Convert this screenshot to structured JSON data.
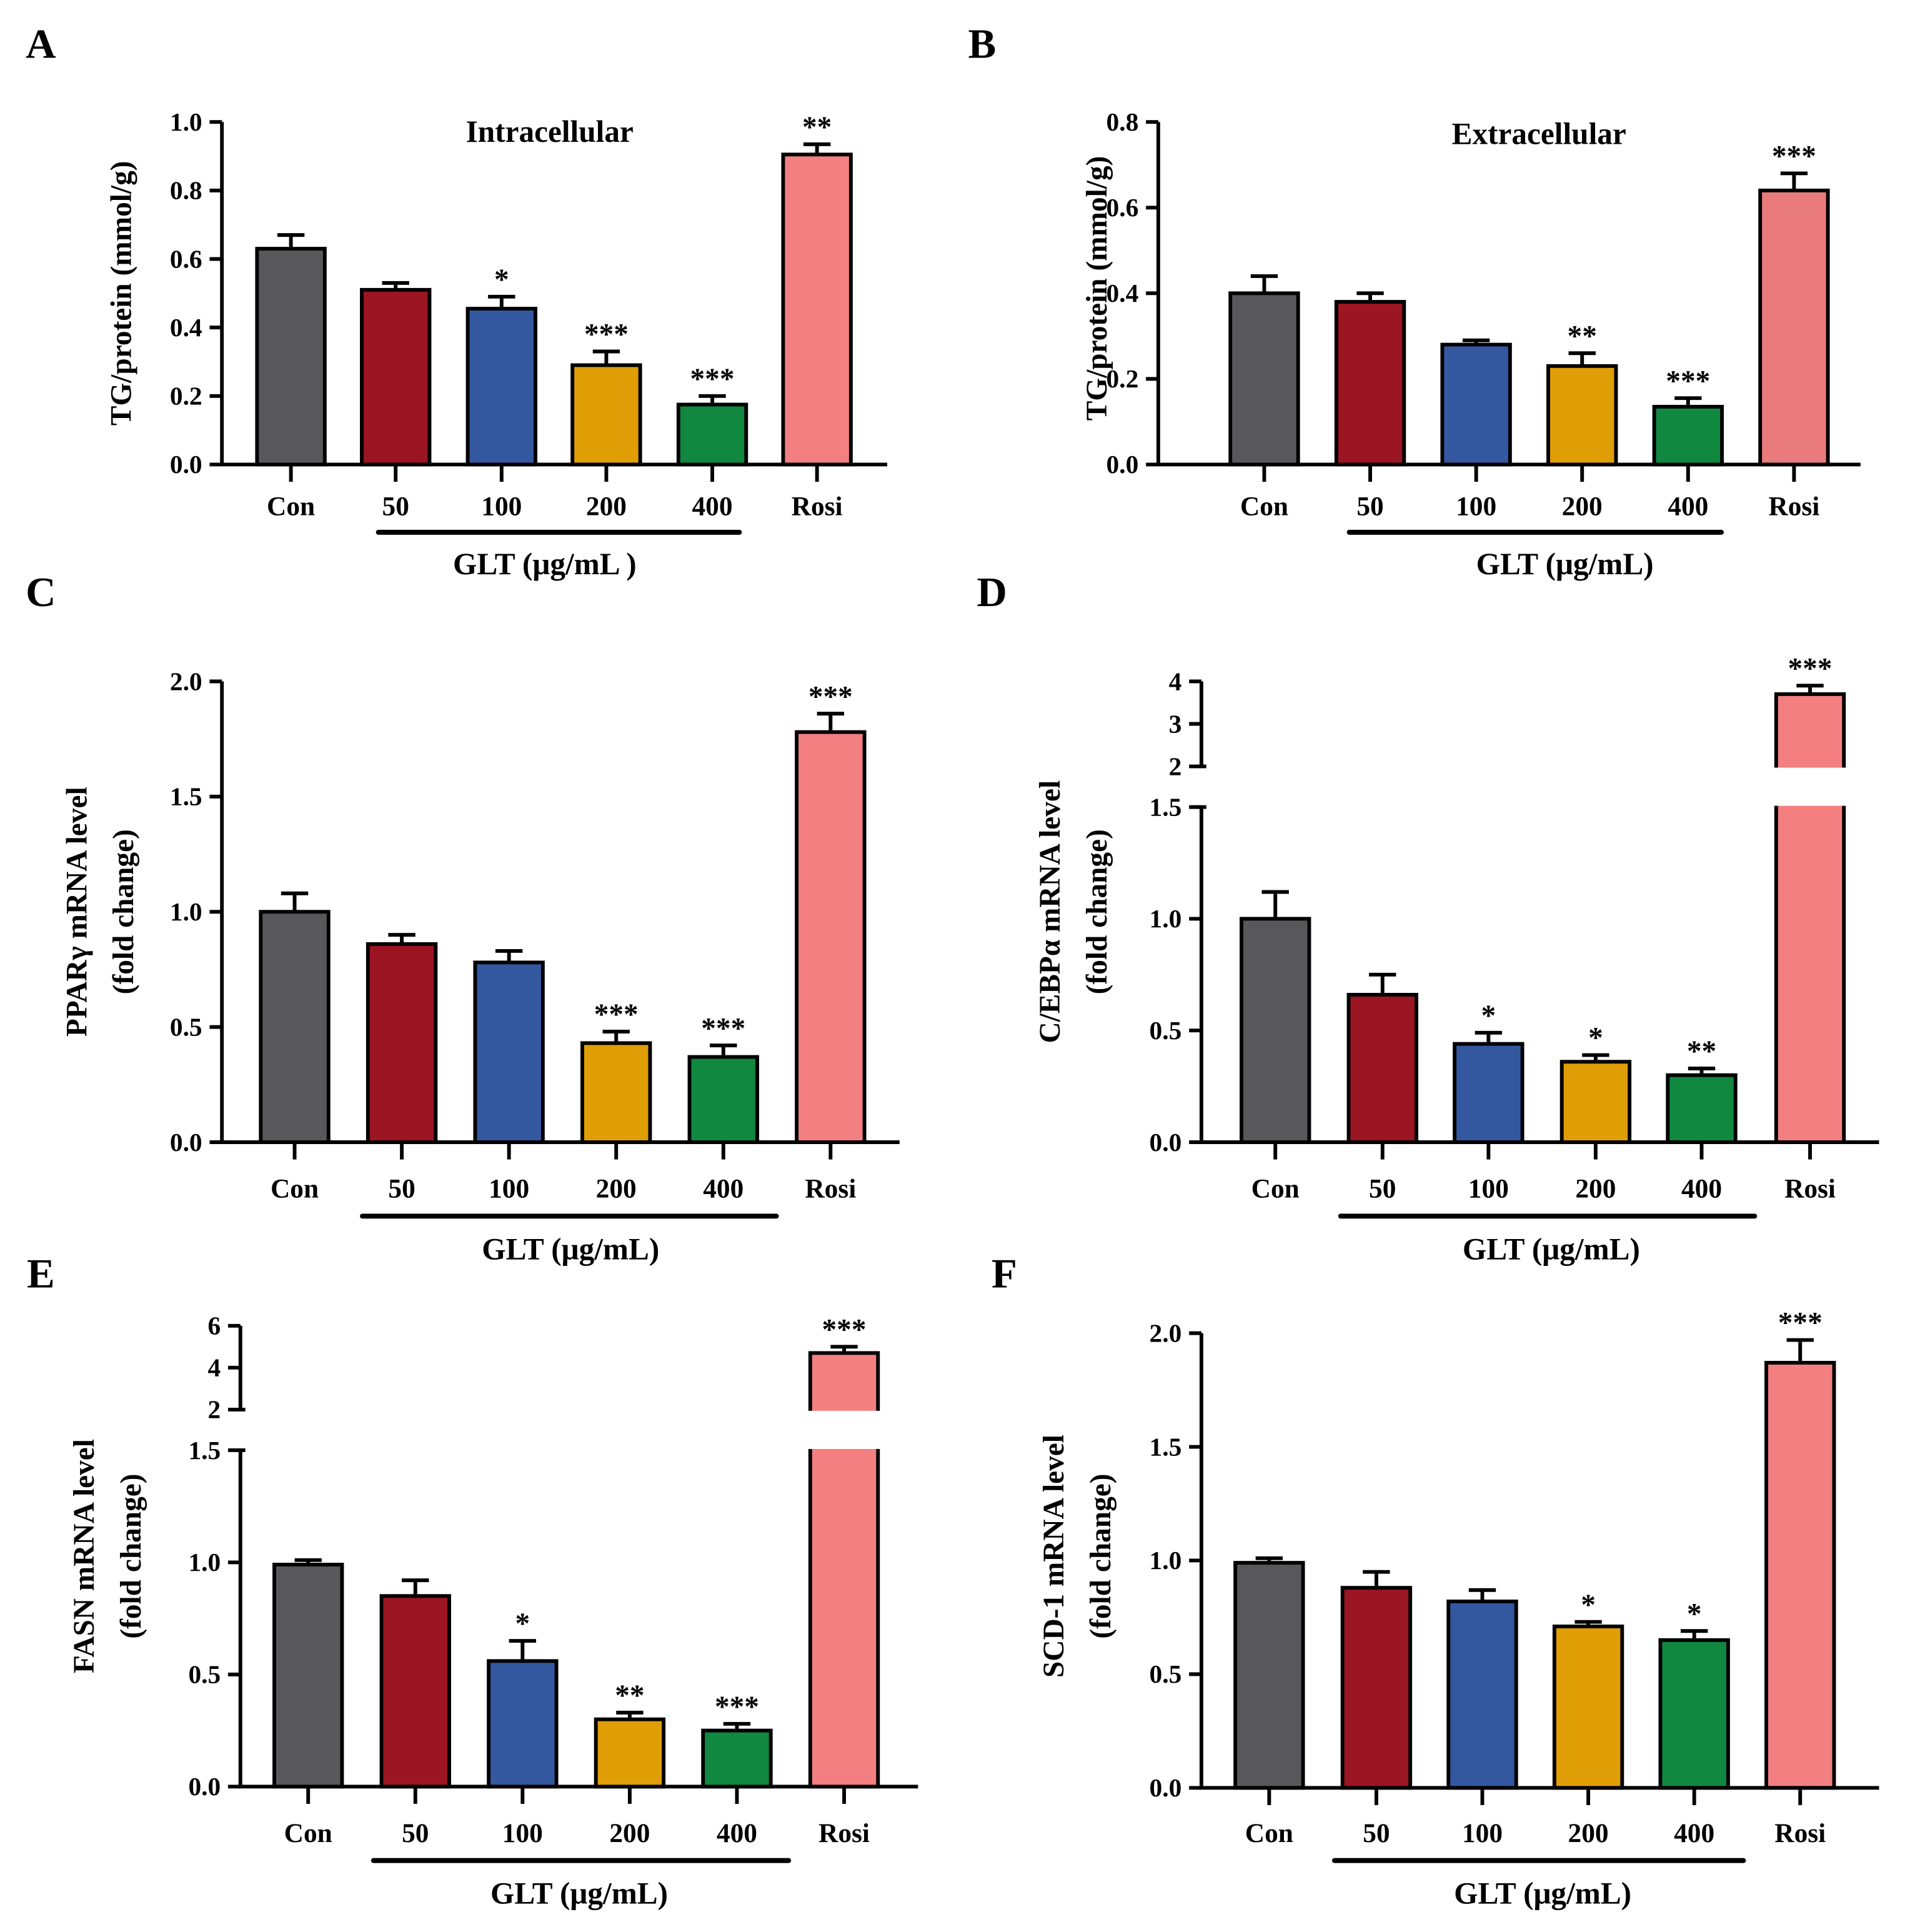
{
  "colors": {
    "Con": "#58585a",
    "50": "#9b1522",
    "100": "#3358a0",
    "200": "#e09e06",
    "400": "#108840",
    "Rosi": "#f37f80",
    "RosiB": "#e97b7d"
  },
  "chart_data": [
    {
      "panel": "A",
      "type": "bar",
      "title": "Intracellular",
      "ylabel": "TG/protein (mmol/g)",
      "xlabel": "GLT (μg/mL )",
      "categories": [
        "Con",
        "50",
        "100",
        "200",
        "400",
        "Rosi"
      ],
      "values": [
        0.63,
        0.51,
        0.455,
        0.29,
        0.175,
        0.905
      ],
      "errors": [
        0.04,
        0.02,
        0.035,
        0.04,
        0.025,
        0.03
      ],
      "significance": [
        "",
        "",
        "*",
        "***",
        "***",
        "**"
      ],
      "ylim": [
        0,
        1.0
      ],
      "yticks": [
        "0.0",
        "0.2",
        "0.4",
        "0.6",
        "0.8",
        "1.0"
      ]
    },
    {
      "panel": "B",
      "type": "bar",
      "title": "Extracellular",
      "ylabel": "TG/protein (mmol/g)",
      "xlabel": "GLT (μg/mL)",
      "categories": [
        "Con",
        "50",
        "100",
        "200",
        "400",
        "Rosi"
      ],
      "values": [
        0.4,
        0.38,
        0.28,
        0.23,
        0.135,
        0.64
      ],
      "errors": [
        0.04,
        0.02,
        0.01,
        0.03,
        0.02,
        0.04
      ],
      "significance": [
        "",
        "",
        "",
        "**",
        "***",
        "***"
      ],
      "ylim": [
        0,
        0.8
      ],
      "yticks": [
        "0.0",
        "0.2",
        "0.4",
        "0.6",
        "0.8"
      ]
    },
    {
      "panel": "C",
      "type": "bar",
      "title": "",
      "ylabel": "PPARγ mRNA level",
      "ylabel2": "(fold change)",
      "xlabel": "GLT (μg/mL)",
      "categories": [
        "Con",
        "50",
        "100",
        "200",
        "400",
        "Rosi"
      ],
      "values": [
        1.0,
        0.86,
        0.78,
        0.43,
        0.37,
        1.78
      ],
      "errors": [
        0.08,
        0.04,
        0.05,
        0.05,
        0.05,
        0.08
      ],
      "significance": [
        "",
        "",
        "",
        "***",
        "***",
        "***"
      ],
      "ylim": [
        0,
        2.0
      ],
      "yticks": [
        "0.0",
        "0.5",
        "1.0",
        "1.5",
        "2.0"
      ]
    },
    {
      "panel": "D",
      "type": "bar",
      "title": "",
      "ylabel": "C/EBPα mRNA level",
      "ylabel2": "(fold change)",
      "xlabel": "GLT (μg/mL)",
      "categories": [
        "Con",
        "50",
        "100",
        "200",
        "400",
        "Rosi"
      ],
      "values": [
        1.0,
        0.66,
        0.44,
        0.36,
        0.3,
        3.7
      ],
      "errors": [
        0.12,
        0.09,
        0.05,
        0.03,
        0.03,
        0.2
      ],
      "significance": [
        "",
        "",
        "*",
        "*",
        "**",
        "***"
      ],
      "ylim": [
        0,
        4
      ],
      "axis_break": [
        1.5,
        2
      ],
      "yticks": [
        "0.0",
        "0.5",
        "1.0",
        "1.5"
      ],
      "yticks_upper": [
        "2",
        "3",
        "4"
      ]
    },
    {
      "panel": "E",
      "type": "bar",
      "title": "",
      "ylabel": "FASN mRNA level",
      "ylabel2": "(fold change)",
      "xlabel": "GLT (μg/mL)",
      "categories": [
        "Con",
        "50",
        "100",
        "200",
        "400",
        "Rosi"
      ],
      "values": [
        0.99,
        0.85,
        0.56,
        0.3,
        0.25,
        4.7
      ],
      "errors": [
        0.02,
        0.07,
        0.09,
        0.03,
        0.03,
        0.3
      ],
      "significance": [
        "",
        "",
        "*",
        "**",
        "***",
        "***"
      ],
      "ylim": [
        0,
        6
      ],
      "axis_break": [
        1.5,
        2
      ],
      "yticks": [
        "0.0",
        "0.5",
        "1.0",
        "1.5"
      ],
      "yticks_upper": [
        "2",
        "4",
        "6"
      ]
    },
    {
      "panel": "F",
      "type": "bar",
      "title": "",
      "ylabel": "SCD-1 mRNA level",
      "ylabel2": "(fold change)",
      "xlabel": "GLT (μg/mL)",
      "categories": [
        "Con",
        "50",
        "100",
        "200",
        "400",
        "Rosi"
      ],
      "values": [
        0.99,
        0.88,
        0.82,
        0.71,
        0.65,
        1.87
      ],
      "errors": [
        0.02,
        0.07,
        0.05,
        0.02,
        0.04,
        0.1
      ],
      "significance": [
        "",
        "",
        "",
        "*",
        "*",
        "***"
      ],
      "ylim": [
        0,
        2.0
      ],
      "yticks": [
        "0.0",
        "0.5",
        "1.0",
        "1.5",
        "2.0"
      ]
    }
  ]
}
